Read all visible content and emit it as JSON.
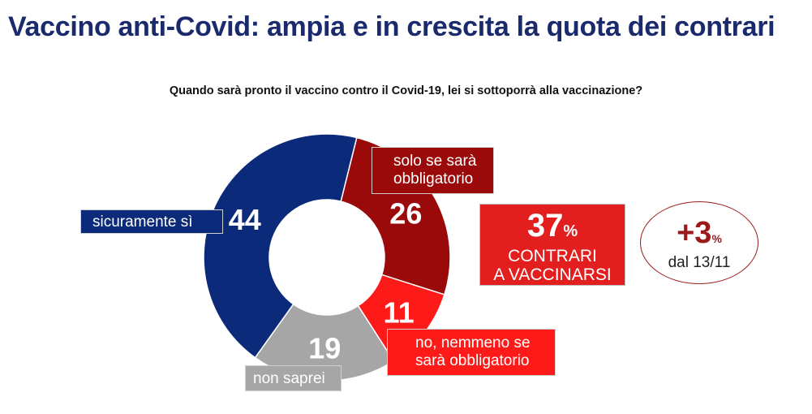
{
  "title": "Vaccino anti-Covid: ampia e in crescita la quota dei contrari",
  "question": "Quando sarà pronto il vaccino contro il Covid-19, lei si sottoporrà alla vaccinazione?",
  "colors": {
    "title": "#1a2a6c",
    "sicuramente_si": "#0c2a7a",
    "solo_se_obbligatorio": "#9b0a0a",
    "no_nemmeno": "#ff1a1a",
    "non_saprei": "#a6a6a6",
    "contrari_box": "#e31e1e",
    "delta_ring": "#9b1b1b"
  },
  "chart_data": {
    "type": "pie",
    "donut": true,
    "categories": [
      "sicuramente sì",
      "solo se sarà obbligatorio",
      "no, nemmeno se sarà obbligatorio",
      "non saprei"
    ],
    "values": [
      44,
      26,
      11,
      19
    ],
    "value_labels": [
      "44",
      "26",
      "11",
      "19"
    ],
    "legend_labels": {
      "si": "sicuramente sì",
      "obb": "solo se sarà obbligatorio",
      "no": "no, nemmeno se sarà obbligatorio",
      "ns": "non saprei"
    }
  },
  "callout": {
    "value": "37",
    "pct": "%",
    "line1": "CONTRARI",
    "line2": "A VACCINARSI"
  },
  "delta": {
    "value": "+3",
    "pct": "%",
    "label": "dal 13/11"
  }
}
